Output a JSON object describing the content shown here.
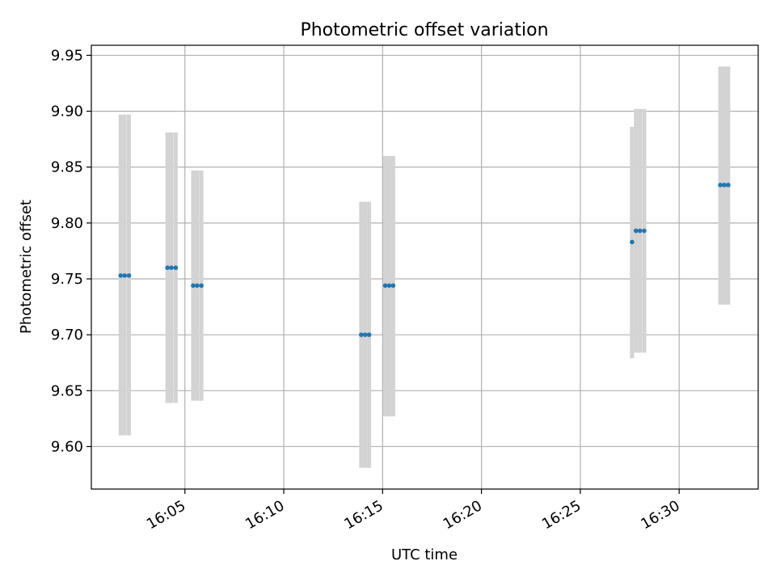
{
  "chart_data": {
    "type": "scatter",
    "title": "Photometric offset variation",
    "xlabel": "UTC time",
    "ylabel": "Photometric offset",
    "x_ticks": [
      "16:05",
      "16:10",
      "16:15",
      "16:20",
      "16:25",
      "16:30"
    ],
    "y_ticks": [
      "9.60",
      "9.65",
      "9.70",
      "9.75",
      "9.80",
      "9.85",
      "9.90",
      "9.95"
    ],
    "xlim": [
      "16:00:16",
      "16:34:00"
    ],
    "ylim": [
      9.562,
      9.959
    ],
    "grid": true,
    "point_color": "#1f77b4",
    "errorbar_color": "#d3d3d3",
    "points": [
      {
        "t": "16:01:45",
        "y": 9.753,
        "err_low": 9.61,
        "err_high": 9.897
      },
      {
        "t": "16:01:57",
        "y": 9.753,
        "err_low": 9.61,
        "err_high": 9.897
      },
      {
        "t": "16:02:10",
        "y": 9.753,
        "err_low": 9.61,
        "err_high": 9.897
      },
      {
        "t": "16:04:07",
        "y": 9.76,
        "err_low": 9.639,
        "err_high": 9.881
      },
      {
        "t": "16:04:19",
        "y": 9.76,
        "err_low": 9.639,
        "err_high": 9.881
      },
      {
        "t": "16:04:32",
        "y": 9.76,
        "err_low": 9.639,
        "err_high": 9.881
      },
      {
        "t": "16:05:25",
        "y": 9.744,
        "err_low": 9.641,
        "err_high": 9.847
      },
      {
        "t": "16:05:37",
        "y": 9.744,
        "err_low": 9.641,
        "err_high": 9.847
      },
      {
        "t": "16:05:50",
        "y": 9.744,
        "err_low": 9.641,
        "err_high": 9.847
      },
      {
        "t": "16:13:55",
        "y": 9.7,
        "err_low": 9.581,
        "err_high": 9.819
      },
      {
        "t": "16:14:07",
        "y": 9.7,
        "err_low": 9.581,
        "err_high": 9.819
      },
      {
        "t": "16:14:19",
        "y": 9.7,
        "err_low": 9.581,
        "err_high": 9.819
      },
      {
        "t": "16:15:08",
        "y": 9.744,
        "err_low": 9.627,
        "err_high": 9.86
      },
      {
        "t": "16:15:20",
        "y": 9.744,
        "err_low": 9.627,
        "err_high": 9.86
      },
      {
        "t": "16:15:32",
        "y": 9.744,
        "err_low": 9.627,
        "err_high": 9.86
      },
      {
        "t": "16:27:37",
        "y": 9.783,
        "err_low": 9.679,
        "err_high": 9.886
      },
      {
        "t": "16:27:49",
        "y": 9.793,
        "err_low": 9.684,
        "err_high": 9.902
      },
      {
        "t": "16:28:01",
        "y": 9.793,
        "err_low": 9.684,
        "err_high": 9.902
      },
      {
        "t": "16:28:14",
        "y": 9.793,
        "err_low": 9.684,
        "err_high": 9.902
      },
      {
        "t": "16:32:05",
        "y": 9.834,
        "err_low": 9.727,
        "err_high": 9.94
      },
      {
        "t": "16:32:17",
        "y": 9.834,
        "err_low": 9.727,
        "err_high": 9.94
      },
      {
        "t": "16:32:29",
        "y": 9.834,
        "err_low": 9.727,
        "err_high": 9.94
      }
    ]
  }
}
